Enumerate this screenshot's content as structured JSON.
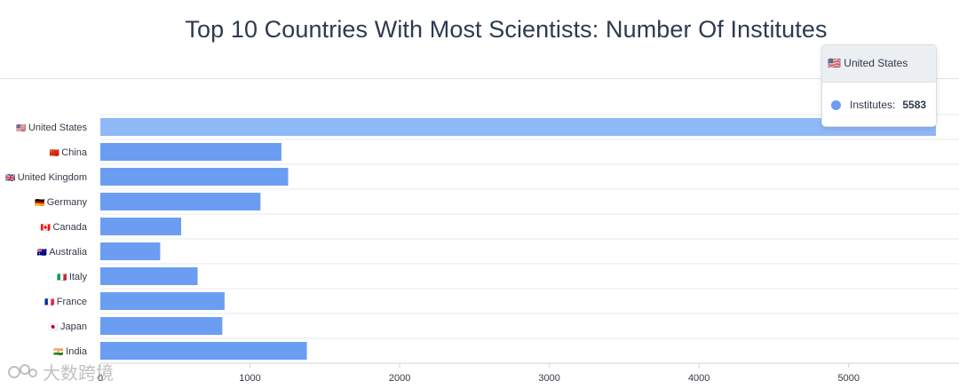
{
  "chart_data": {
    "type": "bar",
    "orientation": "horizontal",
    "title": "Top 10 Countries With Most Scientists: Number Of Institutes",
    "categories": [
      "United States",
      "China",
      "United Kingdom",
      "Germany",
      "Canada",
      "Australia",
      "Italy",
      "France",
      "Japan",
      "India"
    ],
    "flags": [
      "🇺🇸",
      "🇨🇳",
      "🇬🇧",
      "🇩🇪",
      "🇨🇦",
      "🇦🇺",
      "🇮🇹",
      "🇫🇷",
      "🇯🇵",
      "🇮🇳"
    ],
    "series": [
      {
        "values": [
          5583,
          1210,
          1255,
          1070,
          540,
          400,
          650,
          830,
          815,
          1380
        ]
      }
    ],
    "xlim": [
      0,
      5583
    ],
    "xticks": [
      0,
      1000,
      2000,
      3000,
      4000,
      5000
    ],
    "grid": true,
    "bar_color": "#6b9ef2",
    "highlight_color": "#8fb8f7",
    "highlight_index": 0
  },
  "tooltip": {
    "title": "🇺🇸 United States",
    "label": "Institutes:",
    "value": "5583"
  },
  "watermark": "大数跨境"
}
